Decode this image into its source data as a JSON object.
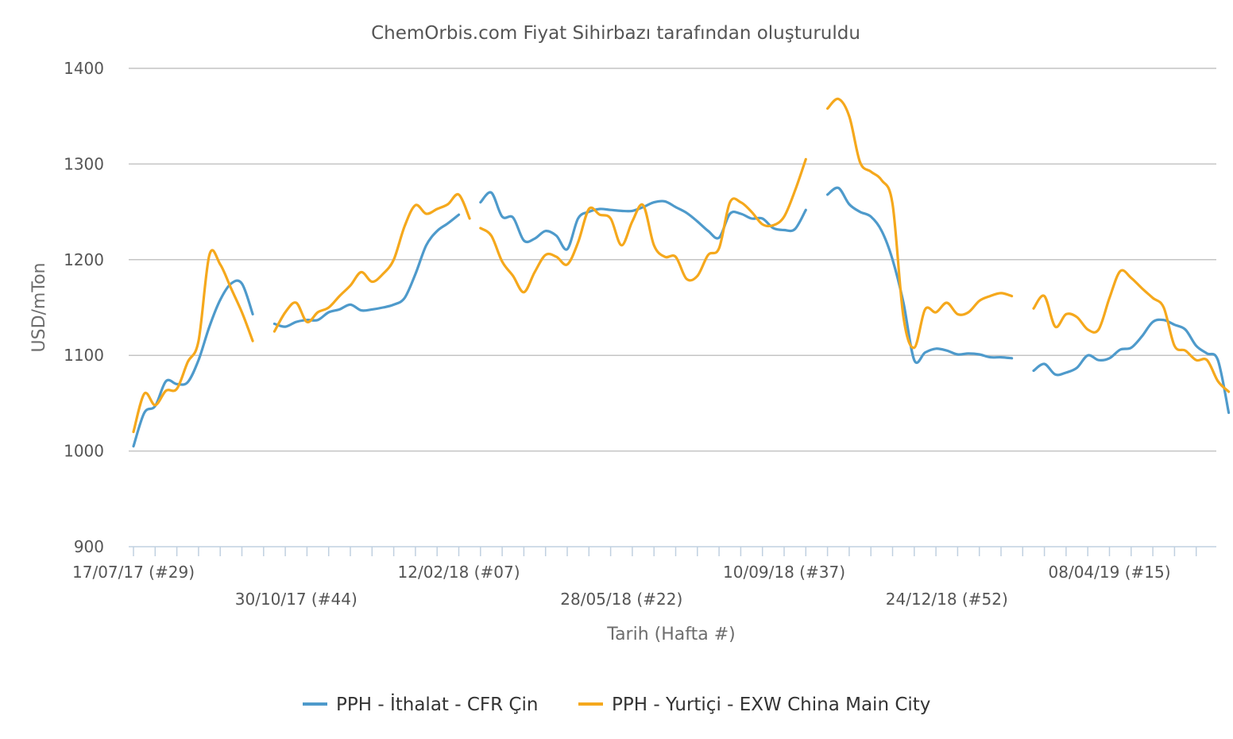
{
  "chart_data": {
    "type": "line",
    "title": "ChemOrbis.com Fiyat Sihirbazı tarafından oluşturuldu",
    "xlabel": "Tarih (Hafta #)",
    "ylabel": "USD/mTon",
    "ylim": [
      900,
      1400
    ],
    "y_ticks": [
      900,
      1000,
      1100,
      1200,
      1300,
      1400
    ],
    "x_start": "2017-07-17",
    "x_end": "2019-06-03",
    "x_tick_labels": [
      {
        "date": "2017-07-17",
        "label": "17/07/17 (#29)"
      },
      {
        "date": "2017-10-30",
        "label": "30/10/17 (#44)"
      },
      {
        "date": "2018-02-12",
        "label": "12/02/18 (#07)"
      },
      {
        "date": "2018-05-28",
        "label": "28/05/18 (#22)"
      },
      {
        "date": "2018-09-10",
        "label": "10/09/18 (#37)"
      },
      {
        "date": "2018-12-24",
        "label": "24/12/18 (#52)"
      },
      {
        "date": "2019-04-08",
        "label": "08/04/19 (#15)"
      }
    ],
    "grid": true,
    "legend_position": "bottom",
    "series": [
      {
        "name": "PPH - İthalat - CFR Çin",
        "color": "#4e9acb",
        "segments": [
          [
            [
              "2017-07-17",
              1005
            ],
            [
              "2017-07-24",
              1040
            ],
            [
              "2017-07-31",
              1047
            ],
            [
              "2017-08-07",
              1073
            ],
            [
              "2017-08-14",
              1070
            ],
            [
              "2017-08-21",
              1072
            ],
            [
              "2017-08-28",
              1095
            ],
            [
              "2017-09-04",
              1130
            ],
            [
              "2017-09-11",
              1158
            ],
            [
              "2017-09-18",
              1175
            ],
            [
              "2017-09-25",
              1175
            ],
            [
              "2017-10-02",
              1143
            ]
          ],
          [
            [
              "2017-10-16",
              1133
            ],
            [
              "2017-10-23",
              1130
            ],
            [
              "2017-10-30",
              1135
            ],
            [
              "2017-11-06",
              1137
            ],
            [
              "2017-11-13",
              1137
            ],
            [
              "2017-11-20",
              1145
            ],
            [
              "2017-11-27",
              1148
            ],
            [
              "2017-12-04",
              1153
            ],
            [
              "2017-12-11",
              1147
            ],
            [
              "2017-12-18",
              1148
            ],
            [
              "2017-12-25",
              1150
            ],
            [
              "2018-01-01",
              1153
            ],
            [
              "2018-01-08",
              1160
            ],
            [
              "2018-01-15",
              1185
            ],
            [
              "2018-01-22",
              1215
            ],
            [
              "2018-01-29",
              1230
            ],
            [
              "2018-02-05",
              1238
            ],
            [
              "2018-02-12",
              1247
            ]
          ],
          [
            [
              "2018-02-26",
              1260
            ],
            [
              "2018-03-05",
              1270
            ],
            [
              "2018-03-12",
              1245
            ],
            [
              "2018-03-19",
              1244
            ],
            [
              "2018-03-26",
              1220
            ],
            [
              "2018-04-02",
              1222
            ],
            [
              "2018-04-09",
              1230
            ],
            [
              "2018-04-16",
              1225
            ],
            [
              "2018-04-23",
              1211
            ],
            [
              "2018-04-30",
              1243
            ],
            [
              "2018-05-07",
              1250
            ],
            [
              "2018-05-14",
              1253
            ],
            [
              "2018-05-21",
              1252
            ],
            [
              "2018-05-28",
              1251
            ],
            [
              "2018-06-04",
              1251
            ],
            [
              "2018-06-11",
              1255
            ],
            [
              "2018-06-18",
              1260
            ],
            [
              "2018-06-25",
              1261
            ],
            [
              "2018-07-02",
              1255
            ],
            [
              "2018-07-09",
              1249
            ],
            [
              "2018-07-16",
              1240
            ],
            [
              "2018-07-23",
              1230
            ],
            [
              "2018-07-30",
              1223
            ],
            [
              "2018-08-06",
              1248
            ],
            [
              "2018-08-13",
              1248
            ],
            [
              "2018-08-20",
              1243
            ],
            [
              "2018-08-27",
              1243
            ],
            [
              "2018-09-03",
              1233
            ],
            [
              "2018-09-10",
              1231
            ],
            [
              "2018-09-17",
              1232
            ],
            [
              "2018-09-24",
              1252
            ]
          ],
          [
            [
              "2018-10-08",
              1268
            ],
            [
              "2018-10-15",
              1275
            ],
            [
              "2018-10-22",
              1258
            ],
            [
              "2018-10-29",
              1250
            ],
            [
              "2018-11-05",
              1245
            ],
            [
              "2018-11-12",
              1230
            ],
            [
              "2018-11-19",
              1200
            ],
            [
              "2018-11-26",
              1155
            ],
            [
              "2018-12-03",
              1095
            ],
            [
              "2018-12-10",
              1103
            ],
            [
              "2018-12-17",
              1107
            ],
            [
              "2018-12-24",
              1105
            ],
            [
              "2018-12-31",
              1101
            ],
            [
              "2019-01-07",
              1102
            ],
            [
              "2019-01-14",
              1101
            ],
            [
              "2019-01-21",
              1098
            ],
            [
              "2019-01-28",
              1098
            ],
            [
              "2019-02-04",
              1097
            ]
          ],
          [
            [
              "2019-02-18",
              1084
            ],
            [
              "2019-02-25",
              1091
            ],
            [
              "2019-03-04",
              1080
            ],
            [
              "2019-03-11",
              1082
            ],
            [
              "2019-03-18",
              1087
            ],
            [
              "2019-03-25",
              1100
            ],
            [
              "2019-04-01",
              1095
            ],
            [
              "2019-04-08",
              1097
            ],
            [
              "2019-04-15",
              1106
            ],
            [
              "2019-04-22",
              1108
            ],
            [
              "2019-04-29",
              1120
            ],
            [
              "2019-05-06",
              1135
            ],
            [
              "2019-05-13",
              1137
            ],
            [
              "2019-05-20",
              1132
            ],
            [
              "2019-05-27",
              1127
            ],
            [
              "2019-06-03",
              1110
            ],
            [
              "2019-06-10",
              1102
            ],
            [
              "2019-06-17",
              1095
            ],
            [
              "2019-06-24",
              1040
            ]
          ]
        ]
      },
      {
        "name": "PPH - Yurtiçi - EXW China Main City",
        "color": "#f5a81c",
        "segments": [
          [
            [
              "2017-07-17",
              1020
            ],
            [
              "2017-07-24",
              1060
            ],
            [
              "2017-07-31",
              1048
            ],
            [
              "2017-08-07",
              1063
            ],
            [
              "2017-08-14",
              1065
            ],
            [
              "2017-08-21",
              1093
            ],
            [
              "2017-08-28",
              1115
            ],
            [
              "2017-09-04",
              1205
            ],
            [
              "2017-09-11",
              1195
            ],
            [
              "2017-09-18",
              1170
            ],
            [
              "2017-09-25",
              1145
            ],
            [
              "2017-10-02",
              1115
            ]
          ],
          [
            [
              "2017-10-16",
              1125
            ],
            [
              "2017-10-23",
              1145
            ],
            [
              "2017-10-30",
              1155
            ],
            [
              "2017-11-06",
              1135
            ],
            [
              "2017-11-13",
              1145
            ],
            [
              "2017-11-20",
              1150
            ],
            [
              "2017-11-27",
              1162
            ],
            [
              "2017-12-04",
              1173
            ],
            [
              "2017-12-11",
              1187
            ],
            [
              "2017-12-18",
              1177
            ],
            [
              "2017-12-25",
              1185
            ],
            [
              "2018-01-01",
              1200
            ],
            [
              "2018-01-08",
              1235
            ],
            [
              "2018-01-15",
              1257
            ],
            [
              "2018-01-22",
              1248
            ],
            [
              "2018-01-29",
              1253
            ],
            [
              "2018-02-05",
              1258
            ],
            [
              "2018-02-12",
              1268
            ],
            [
              "2018-02-19",
              1243
            ]
          ],
          [
            [
              "2018-02-26",
              1233
            ],
            [
              "2018-03-05",
              1225
            ],
            [
              "2018-03-12",
              1198
            ],
            [
              "2018-03-19",
              1183
            ],
            [
              "2018-03-26",
              1166
            ],
            [
              "2018-04-02",
              1187
            ],
            [
              "2018-04-09",
              1205
            ],
            [
              "2018-04-16",
              1203
            ],
            [
              "2018-04-23",
              1195
            ],
            [
              "2018-04-30",
              1218
            ],
            [
              "2018-05-07",
              1253
            ],
            [
              "2018-05-14",
              1247
            ],
            [
              "2018-05-21",
              1243
            ],
            [
              "2018-05-28",
              1215
            ],
            [
              "2018-06-04",
              1240
            ],
            [
              "2018-06-11",
              1257
            ],
            [
              "2018-06-18",
              1215
            ],
            [
              "2018-06-25",
              1203
            ],
            [
              "2018-07-02",
              1203
            ],
            [
              "2018-07-09",
              1180
            ],
            [
              "2018-07-16",
              1183
            ],
            [
              "2018-07-23",
              1205
            ],
            [
              "2018-07-30",
              1212
            ],
            [
              "2018-08-06",
              1260
            ],
            [
              "2018-08-13",
              1260
            ],
            [
              "2018-08-20",
              1250
            ],
            [
              "2018-08-27",
              1237
            ],
            [
              "2018-09-03",
              1236
            ],
            [
              "2018-09-10",
              1245
            ],
            [
              "2018-09-17",
              1272
            ],
            [
              "2018-09-24",
              1305
            ]
          ],
          [
            [
              "2018-10-08",
              1358
            ],
            [
              "2018-10-15",
              1368
            ],
            [
              "2018-10-22",
              1350
            ],
            [
              "2018-10-29",
              1302
            ],
            [
              "2018-11-05",
              1292
            ],
            [
              "2018-11-12",
              1283
            ],
            [
              "2018-11-19",
              1258
            ],
            [
              "2018-11-26",
              1140
            ],
            [
              "2018-12-03",
              1108
            ],
            [
              "2018-12-10",
              1148
            ],
            [
              "2018-12-17",
              1145
            ],
            [
              "2018-12-24",
              1155
            ],
            [
              "2018-12-31",
              1143
            ],
            [
              "2019-01-07",
              1145
            ],
            [
              "2019-01-14",
              1157
            ],
            [
              "2019-01-21",
              1162
            ],
            [
              "2019-01-28",
              1165
            ],
            [
              "2019-02-04",
              1162
            ]
          ],
          [
            [
              "2019-02-18",
              1149
            ],
            [
              "2019-02-25",
              1162
            ],
            [
              "2019-03-04",
              1130
            ],
            [
              "2019-03-11",
              1143
            ],
            [
              "2019-03-18",
              1140
            ],
            [
              "2019-03-25",
              1127
            ],
            [
              "2019-04-01",
              1127
            ],
            [
              "2019-04-08",
              1160
            ],
            [
              "2019-04-15",
              1188
            ],
            [
              "2019-04-22",
              1181
            ],
            [
              "2019-04-29",
              1170
            ],
            [
              "2019-05-06",
              1160
            ],
            [
              "2019-05-13",
              1150
            ],
            [
              "2019-05-20",
              1110
            ],
            [
              "2019-05-27",
              1105
            ],
            [
              "2019-06-03",
              1095
            ],
            [
              "2019-06-10",
              1095
            ],
            [
              "2019-06-17",
              1073
            ],
            [
              "2019-06-24",
              1062
            ]
          ]
        ]
      }
    ]
  }
}
